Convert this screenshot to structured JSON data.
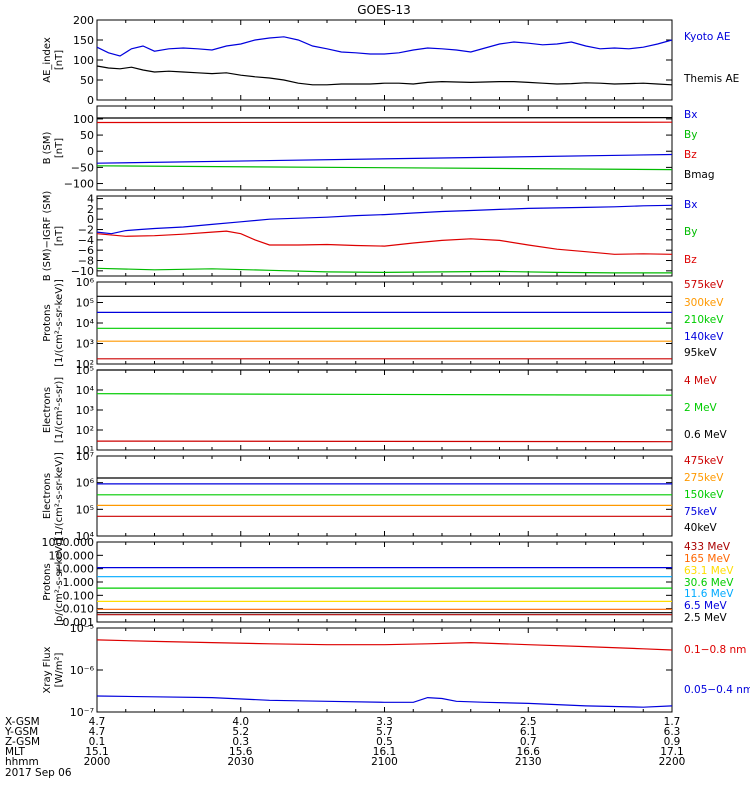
{
  "title": "GOES-13",
  "chart_data": [
    {
      "type": "line",
      "panel": "ae-index",
      "ylabel": [
        "AE_index",
        "[nT]"
      ],
      "scale": "linear",
      "ylim": [
        0,
        200
      ],
      "yticks": [
        0,
        50,
        100,
        150,
        200
      ],
      "ytick_labels": [
        "0",
        "50",
        "100",
        "150",
        "200"
      ],
      "series": [
        {
          "name": "Kyoto AE",
          "color": "#0000dd",
          "x": [
            0,
            4,
            8,
            12,
            16,
            20,
            25,
            30,
            35,
            40,
            45,
            50,
            55,
            60,
            65,
            70,
            75,
            80,
            85,
            90,
            95,
            100,
            105,
            110,
            115,
            120,
            125,
            130,
            135,
            140,
            145,
            150,
            155,
            160,
            165,
            170,
            175,
            180,
            185,
            190,
            195,
            200
          ],
          "y": [
            132,
            118,
            110,
            128,
            135,
            122,
            128,
            130,
            128,
            125,
            135,
            140,
            150,
            155,
            158,
            150,
            135,
            128,
            120,
            118,
            115,
            115,
            118,
            125,
            130,
            128,
            125,
            120,
            130,
            140,
            145,
            142,
            138,
            140,
            145,
            135,
            128,
            130,
            128,
            132,
            140,
            150
          ]
        },
        {
          "name": "Themis AE",
          "color": "#000000",
          "x": [
            0,
            4,
            8,
            12,
            16,
            20,
            25,
            30,
            35,
            40,
            45,
            50,
            55,
            60,
            65,
            70,
            75,
            80,
            85,
            90,
            95,
            100,
            105,
            110,
            115,
            120,
            125,
            130,
            135,
            140,
            145,
            150,
            155,
            160,
            165,
            170,
            175,
            180,
            185,
            190,
            195,
            200
          ],
          "y": [
            85,
            80,
            78,
            82,
            75,
            70,
            72,
            70,
            68,
            66,
            68,
            62,
            58,
            55,
            50,
            42,
            38,
            38,
            40,
            40,
            40,
            42,
            42,
            40,
            44,
            46,
            45,
            44,
            45,
            46,
            46,
            44,
            42,
            40,
            41,
            43,
            42,
            40,
            41,
            42,
            40,
            38
          ]
        }
      ]
    },
    {
      "type": "line",
      "panel": "b-sm",
      "ylabel": [
        "B (SM)",
        "[nT]"
      ],
      "scale": "linear",
      "ylim": [
        -120,
        140
      ],
      "yticks": [
        -100,
        -50,
        0,
        50,
        100
      ],
      "ytick_labels": [
        "−100",
        "−50",
        "0",
        "50",
        "100"
      ],
      "series": [
        {
          "name": "Bx",
          "color": "#0000dd",
          "x": [
            0,
            200
          ],
          "y": [
            -37,
            -10
          ]
        },
        {
          "name": "By",
          "color": "#00bb00",
          "x": [
            0,
            200
          ],
          "y": [
            -45,
            -57
          ]
        },
        {
          "name": "Bz",
          "color": "#dd0000",
          "x": [
            0,
            200
          ],
          "y": [
            89,
            90
          ]
        },
        {
          "name": "Bmag",
          "color": "#000000",
          "x": [
            0,
            200
          ],
          "y": [
            103,
            104
          ]
        }
      ]
    },
    {
      "type": "line",
      "panel": "b-minus-igrf",
      "ylabel": [
        "B (SM)−IGRF (SM)",
        "[nT]"
      ],
      "scale": "linear",
      "ylim": [
        -11,
        4.5
      ],
      "yticks": [
        -10,
        -8,
        -6,
        -4,
        -2,
        0,
        2,
        4
      ],
      "ytick_labels": [
        "−10",
        "−8",
        "−6",
        "−4",
        "−2",
        "0",
        "2",
        "4"
      ],
      "series": [
        {
          "name": "Bx",
          "color": "#0000dd",
          "x": [
            0,
            5,
            10,
            15,
            20,
            30,
            40,
            50,
            60,
            70,
            80,
            90,
            100,
            110,
            120,
            130,
            140,
            150,
            160,
            170,
            180,
            190,
            200
          ],
          "y": [
            -2.5,
            -2.8,
            -2.2,
            -2,
            -1.8,
            -1.5,
            -1,
            -0.5,
            0,
            0.2,
            0.4,
            0.7,
            0.9,
            1.2,
            1.5,
            1.7,
            1.9,
            2.1,
            2.2,
            2.3,
            2.4,
            2.6,
            2.7
          ]
        },
        {
          "name": "By",
          "color": "#00bb00",
          "x": [
            0,
            20,
            40,
            60,
            80,
            100,
            120,
            140,
            160,
            180,
            200
          ],
          "y": [
            -9.5,
            -9.8,
            -9.6,
            -9.9,
            -10.2,
            -10.3,
            -10.2,
            -10.1,
            -10.3,
            -10.4,
            -10.4
          ]
        },
        {
          "name": "Bz",
          "color": "#dd0000",
          "x": [
            0,
            10,
            20,
            30,
            40,
            45,
            50,
            55,
            60,
            70,
            80,
            90,
            100,
            110,
            120,
            130,
            140,
            150,
            160,
            170,
            180,
            190,
            200
          ],
          "y": [
            -2.8,
            -3.3,
            -3.2,
            -2.9,
            -2.5,
            -2.3,
            -2.8,
            -4,
            -5,
            -5,
            -4.9,
            -5.1,
            -5.2,
            -4.6,
            -4.1,
            -3.8,
            -4.1,
            -5,
            -5.8,
            -6.3,
            -6.8,
            -6.7,
            -6.8
          ]
        }
      ]
    },
    {
      "type": "line",
      "panel": "protons-low",
      "ylabel": [
        "Protons",
        "[1/(cm²-s-sr-keV)]"
      ],
      "scale": "log",
      "ylim": [
        100,
        1000000
      ],
      "yticks": [
        100,
        1000,
        10000,
        100000,
        1000000
      ],
      "ytick_labels": [
        "10²",
        "10³",
        "10⁴",
        "10⁵",
        "10⁶"
      ],
      "series": [
        {
          "name": "575keV",
          "color": "#cc0000",
          "x": [
            0,
            200
          ],
          "y": [
            180,
            180
          ]
        },
        {
          "name": "300keV",
          "color": "#ff9900",
          "x": [
            0,
            200
          ],
          "y": [
            1300,
            1300
          ]
        },
        {
          "name": "210keV",
          "color": "#00cc00",
          "x": [
            0,
            200
          ],
          "y": [
            5500,
            5500
          ]
        },
        {
          "name": "140keV",
          "color": "#0000dd",
          "x": [
            0,
            200
          ],
          "y": [
            33000,
            33000
          ]
        },
        {
          "name": "95keV",
          "color": "#000000",
          "x": [
            0,
            200
          ],
          "y": [
            200000,
            200000
          ]
        }
      ]
    },
    {
      "type": "line",
      "panel": "electrons-mev",
      "ylabel": [
        "Electrons",
        "[1/(cm²-s-sr)]"
      ],
      "scale": "log",
      "ylim": [
        10,
        100000
      ],
      "yticks": [
        10,
        100,
        1000,
        10000,
        100000
      ],
      "ytick_labels": [
        "10¹",
        "10²",
        "10³",
        "10⁴",
        "10⁵"
      ],
      "series": [
        {
          "name": "4 MeV",
          "color": "#cc0000",
          "x": [
            0,
            200
          ],
          "y": [
            28,
            26
          ]
        },
        {
          "name": "2 MeV",
          "color": "#00cc00",
          "x": [
            0,
            200
          ],
          "y": [
            6500,
            5500
          ]
        },
        {
          "name": "0.6 MeV",
          "color": "#000000",
          "x": [
            0,
            200
          ],
          "y": [
            100000,
            100000
          ]
        }
      ]
    },
    {
      "type": "line",
      "panel": "electrons-kev",
      "ylabel": [
        "Electrons",
        "[1/(cm²-s-sr-keV)]"
      ],
      "scale": "log",
      "ylim": [
        10000,
        10000000
      ],
      "yticks": [
        10000,
        100000,
        1000000,
        10000000
      ],
      "ytick_labels": [
        "10⁴",
        "10⁵",
        "10⁶",
        "10⁷"
      ],
      "series": [
        {
          "name": "475keV",
          "color": "#cc0000",
          "x": [
            0,
            200
          ],
          "y": [
            55000,
            55000
          ]
        },
        {
          "name": "275keV",
          "color": "#ff9900",
          "x": [
            0,
            200
          ],
          "y": [
            140000,
            140000
          ]
        },
        {
          "name": "150keV",
          "color": "#00cc00",
          "x": [
            0,
            200
          ],
          "y": [
            350000,
            350000
          ]
        },
        {
          "name": "75keV",
          "color": "#0000dd",
          "x": [
            0,
            200
          ],
          "y": [
            900000,
            900000
          ]
        },
        {
          "name": "40keV",
          "color": "#000000",
          "x": [
            0,
            200
          ],
          "y": [
            1500000,
            1500000
          ]
        }
      ]
    },
    {
      "type": "line",
      "panel": "protons-mev",
      "ylabel": [
        "Protons",
        "[p/(cm²-s-sr-keV)]"
      ],
      "scale": "log",
      "ylim": [
        0.001,
        1000
      ],
      "yticks": [
        0.001,
        0.01,
        0.1,
        1,
        10,
        100,
        1000
      ],
      "ytick_labels": [
        "0.001",
        "0.010",
        "0.100",
        "1.000",
        "10.000",
        "100.000",
        "1000.000"
      ],
      "series": [
        {
          "name": "433 MeV",
          "color": "#aa0000",
          "x": [
            0,
            200
          ],
          "y": [
            0.0035,
            0.0035
          ]
        },
        {
          "name": "165 MeV",
          "color": "#ff6600",
          "x": [
            0,
            200
          ],
          "y": [
            0.009,
            0.009
          ]
        },
        {
          "name": "63.1 MeV",
          "color": "#ffdd00",
          "x": [
            0,
            200
          ],
          "y": [
            0.035,
            0.035
          ]
        },
        {
          "name": "30.6 MeV",
          "color": "#00cc00",
          "x": [
            0,
            200
          ],
          "y": [
            0.35,
            0.35
          ]
        },
        {
          "name": "11.6 MeV",
          "color": "#00aaff",
          "x": [
            0,
            200
          ],
          "y": [
            2.5,
            2.5
          ]
        },
        {
          "name": "6.5 MeV",
          "color": "#0000dd",
          "x": [
            0,
            200
          ],
          "y": [
            12,
            12
          ]
        },
        {
          "name": "2.5 MeV",
          "color": "#000000",
          "x": [
            0,
            200
          ],
          "y": [
            0.005,
            0.005
          ]
        }
      ]
    },
    {
      "type": "line",
      "panel": "xray",
      "ylabel": [
        "Xray Flux",
        "[W/m²]"
      ],
      "scale": "log",
      "ylim": [
        1e-07,
        1e-05
      ],
      "yticks": [
        1e-07,
        1e-06,
        1e-05
      ],
      "ytick_labels": [
        "10⁻⁷",
        "10⁻⁶",
        "10⁻⁵"
      ],
      "series": [
        {
          "name": "0.1−0.8 nm",
          "color": "#dd0000",
          "x": [
            0,
            20,
            40,
            60,
            80,
            100,
            115,
            130,
            150,
            170,
            190,
            200
          ],
          "y": [
            5.2e-06,
            4.8e-06,
            4.5e-06,
            4.2e-06,
            4e-06,
            4e-06,
            4.2e-06,
            4.5e-06,
            4e-06,
            3.6e-06,
            3.2e-06,
            3e-06
          ]
        },
        {
          "name": "0.05−0.4 nm",
          "color": "#0000dd",
          "x": [
            0,
            20,
            40,
            60,
            80,
            100,
            110,
            115,
            120,
            125,
            135,
            150,
            170,
            190,
            200
          ],
          "y": [
            2.4e-07,
            2.3e-07,
            2.2e-07,
            1.9e-07,
            1.8e-07,
            1.7e-07,
            1.7e-07,
            2.2e-07,
            2.1e-07,
            1.8e-07,
            1.7e-07,
            1.6e-07,
            1.4e-07,
            1.3e-07,
            1.4e-07
          ]
        }
      ]
    }
  ],
  "x_axis": {
    "range": [
      0,
      200
    ],
    "ticks": [
      0,
      50,
      100,
      150,
      200
    ],
    "row_labels": [
      "X-GSM",
      "Y-GSM",
      "Z-GSM",
      "MLT",
      "hhmm"
    ],
    "rows": [
      [
        "4.7",
        "4.0",
        "3.3",
        "2.5",
        "1.7"
      ],
      [
        "4.7",
        "5.2",
        "5.7",
        "6.1",
        "6.3"
      ],
      [
        "0.1",
        "0.3",
        "0.5",
        "0.7",
        "0.9"
      ],
      [
        "15.1",
        "15.6",
        "16.1",
        "16.6",
        "17.1"
      ],
      [
        "2000",
        "2030",
        "2100",
        "2130",
        "2200"
      ]
    ],
    "date": "2017 Sep 06"
  }
}
